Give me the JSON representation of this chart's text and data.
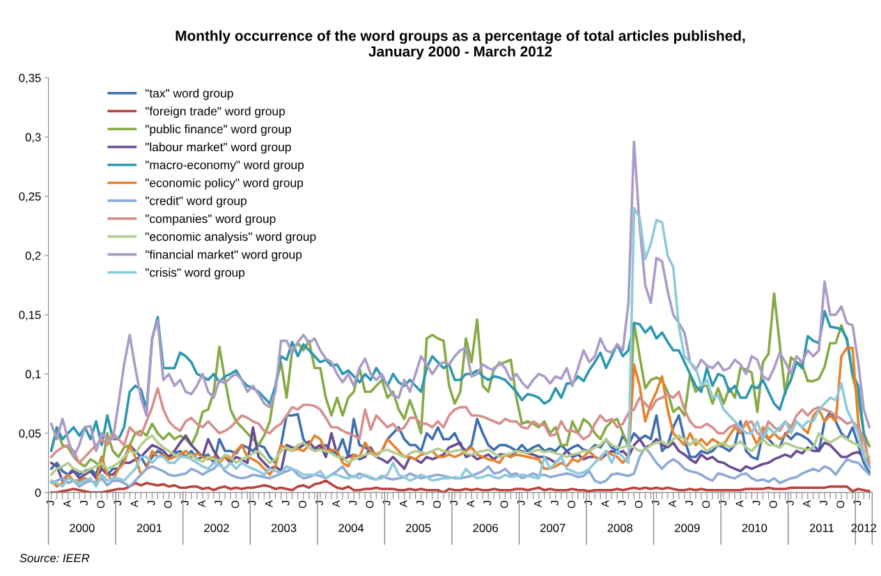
{
  "chart_data": {
    "type": "line",
    "title": "Monthly occurrence of the word groups as a percentage of total articles published,\nJanuary 2000 - March 2012",
    "categories": [
      "J",
      null,
      null,
      "A",
      null,
      null,
      "J",
      null,
      null,
      "O",
      null,
      null,
      "J",
      null,
      null,
      "A",
      null,
      null,
      "J",
      null,
      null,
      "O",
      null,
      null,
      "J",
      null,
      null,
      "A",
      null,
      null,
      "J",
      null,
      null,
      "O",
      null,
      null,
      "J",
      null,
      null,
      "A",
      null,
      null,
      "J",
      null,
      null,
      "O",
      null,
      null,
      "J",
      null,
      null,
      "A",
      null,
      null,
      "J",
      null,
      null,
      "O",
      null,
      null,
      "J",
      null,
      null,
      "A",
      null,
      null,
      "J",
      null,
      null,
      "O",
      null,
      null,
      "J",
      null,
      null,
      "A",
      null,
      null,
      "J",
      null,
      null,
      "O",
      null,
      null,
      "J",
      null,
      null,
      "A",
      null,
      null,
      "J",
      null,
      null,
      "O",
      null,
      null,
      "J",
      null,
      null,
      "A",
      null,
      null,
      "J",
      null,
      null,
      "O",
      null,
      null,
      "J",
      null,
      null,
      "A",
      null,
      null,
      "J",
      null,
      null,
      "O",
      null,
      null,
      "J",
      null,
      null,
      "A",
      null,
      null,
      "J",
      null,
      null,
      "O",
      null,
      null,
      "J",
      null,
      null,
      "A",
      null,
      null,
      "J",
      null,
      null,
      "O",
      null,
      null,
      "J",
      null,
      null
    ],
    "ylim": [
      0,
      0.35
    ],
    "yticks": [
      {
        "value": 0,
        "label": "0"
      },
      {
        "value": 0.05,
        "label": "0,05"
      },
      {
        "value": 0.1,
        "label": "0,1"
      },
      {
        "value": 0.15,
        "label": "0,15"
      },
      {
        "value": 0.2,
        "label": "0,2"
      },
      {
        "value": 0.25,
        "label": "0,25"
      },
      {
        "value": 0.3,
        "label": "0,3"
      },
      {
        "value": 0.35,
        "label": "0,35"
      }
    ],
    "grid": false,
    "legend": "top left",
    "marker": "none",
    "line_style": "solid",
    "annotations": [
      "2000",
      "2001",
      "2002",
      "2003",
      "2004",
      "2005",
      "2006",
      "2007",
      "2008",
      "2009",
      "2010",
      "2011",
      "2012",
      "Source: IEER"
    ],
    "series": [
      {
        "name": "\"tax\" word group",
        "color": "#3f6fb0",
        "values": [
          0.02,
          0.025,
          0.018,
          0.015,
          0.02,
          0.015,
          0.018,
          0.02,
          0.015,
          0.03,
          0.015,
          0.02,
          0.02,
          0.028,
          0.04,
          0.035,
          0.03,
          0.022,
          0.03,
          0.035,
          0.032,
          0.03,
          0.033,
          0.035,
          0.03,
          0.035,
          0.028,
          0.03,
          0.032,
          0.025,
          0.045,
          0.035,
          0.035,
          0.033,
          0.04,
          0.038,
          0.035,
          0.04,
          0.038,
          0.03,
          0.025,
          0.04,
          0.065,
          0.065,
          0.066,
          0.045,
          0.038,
          0.035,
          0.037,
          0.04,
          0.035,
          0.033,
          0.045,
          0.03,
          0.062,
          0.04,
          0.038,
          0.035,
          0.03,
          0.035,
          0.045,
          0.05,
          0.055,
          0.045,
          0.04,
          0.04,
          0.035,
          0.05,
          0.045,
          0.055,
          0.045,
          0.045,
          0.05,
          0.04,
          0.035,
          0.04,
          0.062,
          0.05,
          0.04,
          0.036,
          0.04,
          0.04,
          0.038,
          0.035,
          0.04,
          0.035,
          0.038,
          0.04,
          0.035,
          0.037,
          0.035,
          0.04,
          0.035,
          0.038,
          0.04,
          0.036,
          0.035,
          0.04,
          0.038,
          0.045,
          0.038,
          0.035,
          0.048,
          0.04,
          0.05,
          0.045,
          0.048,
          0.045,
          0.065,
          0.035,
          0.04,
          0.055,
          0.065,
          0.045,
          0.03,
          0.03,
          0.035,
          0.033,
          0.035,
          0.04,
          0.038,
          0.035,
          0.04,
          0.06,
          0.035,
          0.03,
          0.028,
          0.05,
          0.045,
          0.04,
          0.038,
          0.05,
          0.045,
          0.05,
          0.048,
          0.045,
          0.04,
          0.035,
          0.06,
          0.068,
          0.06,
          0.05,
          0.045,
          0.055,
          0.04,
          0.025,
          0.017
        ]
      },
      {
        "name": "\"foreign trade\" word group",
        "color": "#b9433f",
        "values": [
          0.0,
          0.0,
          0.001,
          0.002,
          0.003,
          0.002,
          0.001,
          0.0,
          0.0,
          0.0,
          0.001,
          0.002,
          0.003,
          0.003,
          0.005,
          0.008,
          0.006,
          0.008,
          0.007,
          0.006,
          0.007,
          0.005,
          0.006,
          0.004,
          0.004,
          0.005,
          0.005,
          0.003,
          0.004,
          0.002,
          0.004,
          0.005,
          0.003,
          0.004,
          0.003,
          0.004,
          0.004,
          0.005,
          0.006,
          0.005,
          0.003,
          0.004,
          0.003,
          0.002,
          0.005,
          0.006,
          0.004,
          0.007,
          0.008,
          0.01,
          0.007,
          0.004,
          0.003,
          0.005,
          0.002,
          0.002,
          0.003,
          0.003,
          0.004,
          0.003,
          0.003,
          0.003,
          0.002,
          0.002,
          0.003,
          0.002,
          0.003,
          0.002,
          0.002,
          0.002,
          0.0,
          0.003,
          0.002,
          0.002,
          0.003,
          0.002,
          0.003,
          0.002,
          0.002,
          0.003,
          0.002,
          0.002,
          0.002,
          0.003,
          0.003,
          0.002,
          0.003,
          0.004,
          0.002,
          0.003,
          0.002,
          0.002,
          0.002,
          0.003,
          0.002,
          0.002,
          0.001,
          0.002,
          0.002,
          0.002,
          0.002,
          0.003,
          0.002,
          0.003,
          0.004,
          0.003,
          0.004,
          0.003,
          0.004,
          0.003,
          0.004,
          0.003,
          0.002,
          0.002,
          0.003,
          0.002,
          0.003,
          0.002,
          0.002,
          0.002,
          0.002,
          0.002,
          0.002,
          0.002,
          0.003,
          0.003,
          0.003,
          0.003,
          0.004,
          0.003,
          0.003,
          0.003,
          0.004,
          0.004,
          0.004,
          0.004,
          0.004,
          0.004,
          0.004,
          0.005,
          0.005,
          0.005,
          0.005,
          0.001,
          0.003,
          0.002,
          0.001
        ]
      },
      {
        "name": "\"public finance\" word group",
        "color": "#86ab44",
        "values": [
          0.036,
          0.053,
          0.04,
          0.038,
          0.03,
          0.025,
          0.022,
          0.028,
          0.025,
          0.02,
          0.05,
          0.035,
          0.03,
          0.038,
          0.04,
          0.05,
          0.052,
          0.048,
          0.058,
          0.05,
          0.045,
          0.05,
          0.045,
          0.048,
          0.045,
          0.04,
          0.05,
          0.068,
          0.07,
          0.085,
          0.123,
          0.095,
          0.07,
          0.06,
          0.055,
          0.05,
          0.045,
          0.04,
          0.048,
          0.06,
          0.09,
          0.11,
          0.08,
          0.12,
          0.126,
          0.12,
          0.128,
          0.105,
          0.105,
          0.08,
          0.065,
          0.08,
          0.065,
          0.08,
          0.085,
          0.105,
          0.085,
          0.085,
          0.09,
          0.095,
          0.08,
          0.085,
          0.07,
          0.062,
          0.078,
          0.065,
          0.05,
          0.13,
          0.133,
          0.13,
          0.128,
          0.09,
          0.075,
          0.085,
          0.13,
          0.11,
          0.146,
          0.09,
          0.085,
          0.105,
          0.108,
          0.11,
          0.112,
          0.08,
          0.058,
          0.06,
          0.058,
          0.055,
          0.06,
          0.05,
          0.055,
          0.04,
          0.04,
          0.06,
          0.05,
          0.062,
          0.058,
          0.05,
          0.045,
          0.055,
          0.06,
          0.062,
          0.05,
          0.04,
          0.143,
          0.115,
          0.088,
          0.095,
          0.097,
          0.095,
          0.085,
          0.068,
          0.072,
          0.065,
          0.1,
          0.085,
          0.09,
          0.09,
          0.075,
          0.088,
          0.075,
          0.088,
          0.08,
          0.105,
          0.104,
          0.101,
          0.068,
          0.11,
          0.117,
          0.168,
          0.125,
          0.083,
          0.114,
          0.11,
          0.108,
          0.094,
          0.094,
          0.096,
          0.106,
          0.126,
          0.126,
          0.141,
          0.128,
          0.098,
          0.08,
          0.05,
          0.039
        ]
      },
      {
        "name": "\"labour market\" word group",
        "color": "#6a4c93",
        "values": [
          0.025,
          0.022,
          0.01,
          0.015,
          0.018,
          0.012,
          0.015,
          0.018,
          0.012,
          0.02,
          0.015,
          0.015,
          0.02,
          0.025,
          0.025,
          0.028,
          0.03,
          0.035,
          0.04,
          0.038,
          0.035,
          0.03,
          0.035,
          0.042,
          0.048,
          0.04,
          0.035,
          0.03,
          0.045,
          0.035,
          0.028,
          0.03,
          0.025,
          0.03,
          0.028,
          0.025,
          0.055,
          0.03,
          0.025,
          0.02,
          0.022,
          0.018,
          0.04,
          0.038,
          0.037,
          0.04,
          0.043,
          0.037,
          0.04,
          0.03,
          0.05,
          0.032,
          0.028,
          0.03,
          0.032,
          0.028,
          0.03,
          0.038,
          0.03,
          0.028,
          0.025,
          0.03,
          0.025,
          0.02,
          0.03,
          0.028,
          0.025,
          0.03,
          0.028,
          0.03,
          0.032,
          0.038,
          0.04,
          0.042,
          0.03,
          0.032,
          0.028,
          0.03,
          0.032,
          0.028,
          0.032,
          0.032,
          0.03,
          0.035,
          0.035,
          0.033,
          0.032,
          0.03,
          0.03,
          0.028,
          0.025,
          0.03,
          0.035,
          0.03,
          0.032,
          0.028,
          0.03,
          0.03,
          0.028,
          0.032,
          0.035,
          0.033,
          0.035,
          0.03,
          0.04,
          0.045,
          0.038,
          0.04,
          0.045,
          0.04,
          0.038,
          0.042,
          0.035,
          0.032,
          0.028,
          0.025,
          0.032,
          0.028,
          0.03,
          0.026,
          0.025,
          0.022,
          0.02,
          0.018,
          0.022,
          0.02,
          0.022,
          0.024,
          0.025,
          0.028,
          0.03,
          0.032,
          0.03,
          0.035,
          0.033,
          0.038,
          0.035,
          0.035,
          0.042,
          0.04,
          0.035,
          0.03,
          0.03,
          0.033,
          0.034,
          0.03,
          0.02
        ]
      },
      {
        "name": "\"macro-economy\" word group",
        "color": "#2e97b0",
        "values": [
          0.035,
          0.055,
          0.045,
          0.05,
          0.055,
          0.048,
          0.055,
          0.045,
          0.06,
          0.04,
          0.065,
          0.045,
          0.045,
          0.055,
          0.085,
          0.09,
          0.087,
          0.07,
          0.13,
          0.148,
          0.105,
          0.105,
          0.105,
          0.118,
          0.115,
          0.11,
          0.1,
          0.098,
          0.095,
          0.1,
          0.093,
          0.098,
          0.1,
          0.103,
          0.095,
          0.09,
          0.088,
          0.085,
          0.08,
          0.075,
          0.09,
          0.115,
          0.112,
          0.127,
          0.115,
          0.125,
          0.12,
          0.115,
          0.11,
          0.112,
          0.107,
          0.108,
          0.1,
          0.103,
          0.098,
          0.093,
          0.1,
          0.095,
          0.105,
          0.098,
          0.09,
          0.1,
          0.093,
          0.09,
          0.095,
          0.09,
          0.085,
          0.105,
          0.115,
          0.11,
          0.105,
          0.108,
          0.095,
          0.095,
          0.1,
          0.1,
          0.103,
          0.098,
          0.095,
          0.098,
          0.097,
          0.095,
          0.09,
          0.085,
          0.078,
          0.083,
          0.082,
          0.08,
          0.075,
          0.078,
          0.088,
          0.08,
          0.092,
          0.092,
          0.098,
          0.094,
          0.103,
          0.11,
          0.118,
          0.105,
          0.115,
          0.125,
          0.115,
          0.12,
          0.143,
          0.142,
          0.135,
          0.14,
          0.13,
          0.135,
          0.127,
          0.12,
          0.12,
          0.11,
          0.1,
          0.09,
          0.085,
          0.105,
          0.09,
          0.1,
          0.098,
          0.085,
          0.09,
          0.08,
          0.08,
          0.09,
          0.088,
          0.095,
          0.085,
          0.075,
          0.07,
          0.085,
          0.095,
          0.11,
          0.105,
          0.132,
          0.128,
          0.126,
          0.153,
          0.14,
          0.139,
          0.138,
          0.13,
          0.1,
          0.09,
          0.05,
          0.02
        ]
      },
      {
        "name": "\"economic policy\" word group",
        "color": "#e5822f",
        "values": [
          0.01,
          0.005,
          0.008,
          0.015,
          0.01,
          0.01,
          0.012,
          0.01,
          0.008,
          0.03,
          0.015,
          0.01,
          0.02,
          0.025,
          0.04,
          0.03,
          0.015,
          0.02,
          0.035,
          0.03,
          0.032,
          0.028,
          0.03,
          0.032,
          0.035,
          0.03,
          0.033,
          0.03,
          0.028,
          0.03,
          0.025,
          0.03,
          0.028,
          0.035,
          0.04,
          0.03,
          0.028,
          0.025,
          0.02,
          0.015,
          0.022,
          0.04,
          0.037,
          0.035,
          0.037,
          0.035,
          0.04,
          0.048,
          0.045,
          0.035,
          0.036,
          0.035,
          0.025,
          0.022,
          0.032,
          0.03,
          0.042,
          0.035,
          0.032,
          0.035,
          0.045,
          0.04,
          0.035,
          0.03,
          0.03,
          0.028,
          0.032,
          0.033,
          0.035,
          0.03,
          0.03,
          0.032,
          0.03,
          0.032,
          0.035,
          0.038,
          0.032,
          0.03,
          0.028,
          0.027,
          0.025,
          0.032,
          0.03,
          0.032,
          0.031,
          0.03,
          0.029,
          0.028,
          0.02,
          0.02,
          0.022,
          0.025,
          0.022,
          0.028,
          0.026,
          0.03,
          0.035,
          0.03,
          0.028,
          0.035,
          0.032,
          0.03,
          0.025,
          0.03,
          0.108,
          0.09,
          0.06,
          0.075,
          0.085,
          0.098,
          0.07,
          0.05,
          0.045,
          0.04,
          0.05,
          0.04,
          0.045,
          0.04,
          0.045,
          0.042,
          0.04,
          0.048,
          0.055,
          0.05,
          0.06,
          0.05,
          0.04,
          0.055,
          0.045,
          0.05,
          0.045,
          0.048,
          0.055,
          0.06,
          0.055,
          0.05,
          0.065,
          0.07,
          0.06,
          0.065,
          0.06,
          0.115,
          0.122,
          0.122,
          0.06,
          0.03,
          0.02
        ]
      },
      {
        "name": "\"credit\" word group",
        "color": "#8eaad6",
        "values": [
          0.008,
          0.01,
          0.012,
          0.008,
          0.01,
          0.005,
          0.008,
          0.01,
          0.008,
          0.012,
          0.006,
          0.01,
          0.01,
          0.008,
          0.005,
          0.01,
          0.015,
          0.02,
          0.022,
          0.02,
          0.018,
          0.015,
          0.014,
          0.015,
          0.016,
          0.02,
          0.018,
          0.015,
          0.018,
          0.02,
          0.025,
          0.018,
          0.015,
          0.013,
          0.012,
          0.013,
          0.015,
          0.014,
          0.013,
          0.012,
          0.014,
          0.016,
          0.018,
          0.02,
          0.015,
          0.012,
          0.013,
          0.015,
          0.014,
          0.012,
          0.015,
          0.018,
          0.022,
          0.015,
          0.013,
          0.016,
          0.014,
          0.012,
          0.011,
          0.014,
          0.012,
          0.011,
          0.012,
          0.013,
          0.016,
          0.014,
          0.012,
          0.013,
          0.014,
          0.015,
          0.014,
          0.013,
          0.012,
          0.012,
          0.013,
          0.014,
          0.016,
          0.018,
          0.022,
          0.016,
          0.017,
          0.02,
          0.015,
          0.016,
          0.012,
          0.014,
          0.016,
          0.014,
          0.015,
          0.013,
          0.014,
          0.015,
          0.016,
          0.015,
          0.013,
          0.014,
          0.018,
          0.01,
          0.008,
          0.01,
          0.015,
          0.016,
          0.015,
          0.014,
          0.016,
          0.03,
          0.038,
          0.032,
          0.025,
          0.02,
          0.025,
          0.028,
          0.025,
          0.02,
          0.018,
          0.017,
          0.015,
          0.012,
          0.01,
          0.016,
          0.015,
          0.013,
          0.012,
          0.015,
          0.016,
          0.012,
          0.01,
          0.011,
          0.009,
          0.012,
          0.008,
          0.01,
          0.012,
          0.013,
          0.016,
          0.018,
          0.02,
          0.018,
          0.022,
          0.02,
          0.015,
          0.022,
          0.028,
          0.026,
          0.025,
          0.02,
          0.015
        ]
      },
      {
        "name": "\"companies\" word group",
        "color": "#d68f8c",
        "values": [
          0.03,
          0.035,
          0.038,
          0.04,
          0.035,
          0.025,
          0.03,
          0.035,
          0.04,
          0.045,
          0.04,
          0.05,
          0.045,
          0.04,
          0.055,
          0.05,
          0.048,
          0.06,
          0.072,
          0.088,
          0.07,
          0.06,
          0.055,
          0.052,
          0.06,
          0.063,
          0.058,
          0.055,
          0.06,
          0.055,
          0.05,
          0.052,
          0.055,
          0.06,
          0.065,
          0.063,
          0.06,
          0.058,
          0.052,
          0.05,
          0.055,
          0.058,
          0.065,
          0.072,
          0.07,
          0.074,
          0.074,
          0.073,
          0.07,
          0.063,
          0.055,
          0.055,
          0.052,
          0.05,
          0.048,
          0.045,
          0.07,
          0.053,
          0.065,
          0.06,
          0.055,
          0.058,
          0.052,
          0.055,
          0.063,
          0.063,
          0.058,
          0.058,
          0.055,
          0.06,
          0.055,
          0.065,
          0.07,
          0.072,
          0.072,
          0.065,
          0.065,
          0.064,
          0.062,
          0.06,
          0.058,
          0.062,
          0.06,
          0.06,
          0.055,
          0.054,
          0.06,
          0.057,
          0.057,
          0.048,
          0.049,
          0.06,
          0.052,
          0.052,
          0.05,
          0.045,
          0.048,
          0.058,
          0.065,
          0.06,
          0.062,
          0.055,
          0.058,
          0.067,
          0.07,
          0.08,
          0.075,
          0.07,
          0.078,
          0.08,
          0.083,
          0.08,
          0.085,
          0.07,
          0.06,
          0.055,
          0.055,
          0.058,
          0.055,
          0.05,
          0.05,
          0.055,
          0.057,
          0.052,
          0.058,
          0.06,
          0.05,
          0.048,
          0.06,
          0.055,
          0.052,
          0.06,
          0.055,
          0.065,
          0.07,
          0.065,
          0.07,
          0.072,
          0.07,
          0.068,
          0.065,
          0.062,
          0.058,
          0.06,
          0.055,
          0.045,
          0.025
        ]
      },
      {
        "name": "\"economic analysis\" word group",
        "color": "#b3cd8e",
        "values": [
          0.015,
          0.02,
          0.022,
          0.025,
          0.02,
          0.018,
          0.017,
          0.02,
          0.022,
          0.025,
          0.02,
          0.022,
          0.025,
          0.03,
          0.035,
          0.033,
          0.04,
          0.045,
          0.048,
          0.042,
          0.038,
          0.035,
          0.032,
          0.03,
          0.03,
          0.032,
          0.028,
          0.026,
          0.03,
          0.028,
          0.027,
          0.032,
          0.03,
          0.025,
          0.028,
          0.03,
          0.033,
          0.035,
          0.03,
          0.025,
          0.028,
          0.035,
          0.038,
          0.035,
          0.04,
          0.042,
          0.038,
          0.035,
          0.036,
          0.035,
          0.033,
          0.03,
          0.03,
          0.025,
          0.028,
          0.03,
          0.032,
          0.033,
          0.03,
          0.035,
          0.036,
          0.034,
          0.032,
          0.03,
          0.033,
          0.035,
          0.034,
          0.033,
          0.035,
          0.037,
          0.035,
          0.034,
          0.035,
          0.036,
          0.033,
          0.032,
          0.034,
          0.035,
          0.036,
          0.033,
          0.03,
          0.032,
          0.033,
          0.035,
          0.034,
          0.033,
          0.035,
          0.036,
          0.034,
          0.035,
          0.033,
          0.032,
          0.03,
          0.032,
          0.033,
          0.035,
          0.035,
          0.038,
          0.04,
          0.045,
          0.04,
          0.038,
          0.038,
          0.04,
          0.038,
          0.035,
          0.036,
          0.04,
          0.042,
          0.043,
          0.04,
          0.045,
          0.048,
          0.045,
          0.04,
          0.045,
          0.04,
          0.035,
          0.038,
          0.04,
          0.042,
          0.038,
          0.04,
          0.043,
          0.038,
          0.035,
          0.04,
          0.045,
          0.04,
          0.04,
          0.038,
          0.042,
          0.04,
          0.038,
          0.037,
          0.036,
          0.038,
          0.05,
          0.045,
          0.042,
          0.045,
          0.048,
          0.045,
          0.042,
          0.04,
          0.035,
          0.03
        ]
      },
      {
        "name": "\"financial market\" word group",
        "color": "#ab9bc7",
        "values": [
          0.058,
          0.045,
          0.062,
          0.045,
          0.03,
          0.04,
          0.055,
          0.056,
          0.035,
          0.05,
          0.045,
          0.045,
          0.075,
          0.108,
          0.133,
          0.105,
          0.08,
          0.065,
          0.13,
          0.145,
          0.095,
          0.1,
          0.09,
          0.095,
          0.085,
          0.083,
          0.09,
          0.1,
          0.085,
          0.08,
          0.095,
          0.092,
          0.097,
          0.1,
          0.095,
          0.085,
          0.09,
          0.083,
          0.075,
          0.072,
          0.085,
          0.128,
          0.128,
          0.118,
          0.127,
          0.133,
          0.126,
          0.13,
          0.12,
          0.113,
          0.11,
          0.1,
          0.093,
          0.1,
          0.09,
          0.105,
          0.113,
          0.1,
          0.095,
          0.1,
          0.09,
          0.082,
          0.08,
          0.095,
          0.085,
          0.1,
          0.115,
          0.108,
          0.1,
          0.107,
          0.11,
          0.108,
          0.115,
          0.12,
          0.122,
          0.098,
          0.1,
          0.108,
          0.105,
          0.103,
          0.11,
          0.105,
          0.095,
          0.1,
          0.093,
          0.088,
          0.095,
          0.1,
          0.098,
          0.092,
          0.098,
          0.096,
          0.105,
          0.09,
          0.105,
          0.12,
          0.11,
          0.115,
          0.13,
          0.12,
          0.118,
          0.125,
          0.12,
          0.16,
          0.296,
          0.225,
          0.175,
          0.16,
          0.198,
          0.195,
          0.17,
          0.15,
          0.143,
          0.135,
          0.11,
          0.103,
          0.112,
          0.107,
          0.105,
          0.11,
          0.103,
          0.105,
          0.112,
          0.108,
          0.1,
          0.115,
          0.112,
          0.098,
          0.095,
          0.105,
          0.118,
          0.11,
          0.1,
          0.115,
          0.11,
          0.12,
          0.115,
          0.12,
          0.178,
          0.15,
          0.15,
          0.157,
          0.143,
          0.141,
          0.11,
          0.07,
          0.055
        ]
      },
      {
        "name": "\"crisis\" word group",
        "color": "#8fc9dc",
        "values": [
          0.01,
          0.008,
          0.005,
          0.012,
          0.01,
          0.008,
          0.01,
          0.012,
          0.005,
          0.015,
          0.01,
          0.012,
          0.012,
          0.01,
          0.015,
          0.02,
          0.03,
          0.03,
          0.025,
          0.03,
          0.03,
          0.025,
          0.025,
          0.03,
          0.03,
          0.028,
          0.025,
          0.022,
          0.02,
          0.025,
          0.023,
          0.02,
          0.025,
          0.02,
          0.025,
          0.022,
          0.02,
          0.018,
          0.015,
          0.02,
          0.018,
          0.017,
          0.022,
          0.02,
          0.018,
          0.015,
          0.015,
          0.015,
          0.018,
          0.012,
          0.015,
          0.015,
          0.013,
          0.012,
          0.014,
          0.012,
          0.015,
          0.013,
          0.011,
          0.012,
          0.015,
          0.025,
          0.015,
          0.013,
          0.01,
          0.012,
          0.015,
          0.013,
          0.01,
          0.011,
          0.012,
          0.012,
          0.013,
          0.012,
          0.02,
          0.015,
          0.012,
          0.013,
          0.015,
          0.013,
          0.012,
          0.015,
          0.013,
          0.014,
          0.015,
          0.014,
          0.013,
          0.012,
          0.03,
          0.02,
          0.025,
          0.03,
          0.02,
          0.018,
          0.016,
          0.017,
          0.02,
          0.025,
          0.03,
          0.035,
          0.025,
          0.035,
          0.03,
          0.025,
          0.24,
          0.232,
          0.197,
          0.21,
          0.23,
          0.228,
          0.2,
          0.19,
          0.14,
          0.115,
          0.11,
          0.105,
          0.09,
          0.095,
          0.08,
          0.082,
          0.07,
          0.065,
          0.06,
          0.055,
          0.05,
          0.05,
          0.06,
          0.045,
          0.055,
          0.05,
          0.055,
          0.06,
          0.05,
          0.06,
          0.055,
          0.06,
          0.06,
          0.07,
          0.075,
          0.08,
          0.078,
          0.092,
          0.07,
          0.06,
          0.05,
          0.03,
          0.02
        ]
      }
    ]
  }
}
